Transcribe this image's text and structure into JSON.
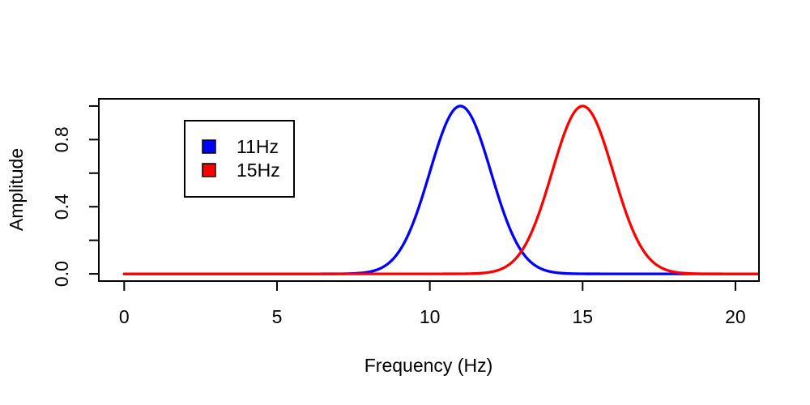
{
  "figure": {
    "background": "#FFFFFF",
    "axis_color": "#000000"
  },
  "chart_data": {
    "type": "line",
    "title": "",
    "xlabel": "Frequency (Hz)",
    "ylabel": "Amplitude",
    "xlim": [
      -0.83,
      20.77
    ],
    "ylim": [
      -0.043,
      1.043
    ],
    "x_data_range": [
      0,
      20.77
    ],
    "x_ticks": [
      0,
      5,
      10,
      15,
      20
    ],
    "x_tick_labels": [
      "0",
      "5",
      "10",
      "15",
      "20"
    ],
    "y_ticks": [
      0.0,
      0.2,
      0.4,
      0.6,
      0.8,
      1.0
    ],
    "y_tick_labels": [
      "0.0",
      "",
      "0.4",
      "",
      "0.8",
      ""
    ],
    "grid": false,
    "legend": {
      "position": "top-left-inside",
      "entries": [
        {
          "label": "11Hz",
          "color": "#0000FF"
        },
        {
          "label": "15Hz",
          "color": "#FF0000"
        }
      ]
    },
    "series": [
      {
        "name": "11Hz",
        "color": "#0000FF",
        "shape": "gaussian",
        "peak_hz": 11,
        "sigma_hz": 1,
        "peak_amplitude": 1.0,
        "baseline": 0.0,
        "sample_x": [
          8,
          8.5,
          9,
          9.5,
          10,
          10.5,
          11,
          11.5,
          12,
          12.5,
          13,
          13.5,
          14
        ],
        "sample_y": [
          0.011,
          0.044,
          0.135,
          0.325,
          0.607,
          0.882,
          1.0,
          0.882,
          0.607,
          0.325,
          0.135,
          0.044,
          0.011
        ]
      },
      {
        "name": "15Hz",
        "color": "#FF0000",
        "shape": "gaussian",
        "peak_hz": 15,
        "sigma_hz": 1,
        "peak_amplitude": 1.0,
        "baseline": 0.0,
        "sample_x": [
          12,
          12.5,
          13,
          13.5,
          14,
          14.5,
          15,
          15.5,
          16,
          16.5,
          17,
          17.5,
          18
        ],
        "sample_y": [
          0.011,
          0.044,
          0.135,
          0.325,
          0.607,
          0.882,
          1.0,
          0.882,
          0.607,
          0.325,
          0.135,
          0.044,
          0.011
        ]
      }
    ]
  }
}
